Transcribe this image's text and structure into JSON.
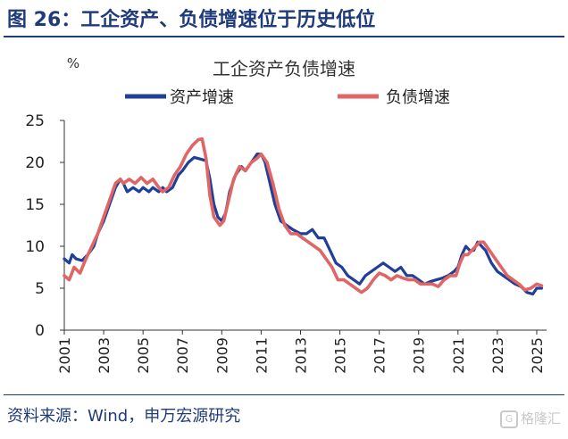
{
  "figure": {
    "title": "图 26：工企资产、负债增速位于历史低位",
    "source": "资料来源：Wind，申万宏源研究",
    "watermark": "格隆汇",
    "watermark_icon": "G"
  },
  "colors": {
    "title": "#1f3b7a",
    "assets": "#1f3f99",
    "liabilities": "#e06666",
    "axis": "#333333"
  },
  "chart_data": {
    "type": "line",
    "title": "工企资产负债增速",
    "unit_label": "%",
    "xlabel": "",
    "ylabel": "",
    "ylim": [
      0,
      25
    ],
    "yticks": [
      0,
      5,
      10,
      15,
      20,
      25
    ],
    "xlim": [
      2001,
      2025.5
    ],
    "xticks": [
      "2001",
      "2003",
      "2005",
      "2007",
      "2009",
      "2011",
      "2013",
      "2015",
      "2017",
      "2019",
      "2021",
      "2023",
      "2025"
    ],
    "grid": false,
    "legend": "top-center",
    "series": [
      {
        "name": "资产增速",
        "color": "#1f3f99",
        "x": [
          2001.0,
          2001.25,
          2001.4,
          2001.6,
          2001.9,
          2002.2,
          2002.5,
          2002.7,
          2003.0,
          2003.3,
          2003.6,
          2003.85,
          2004.0,
          2004.2,
          2004.5,
          2004.8,
          2005.0,
          2005.3,
          2005.5,
          2005.8,
          2006.0,
          2006.2,
          2006.5,
          2006.8,
          2007.0,
          2007.3,
          2007.6,
          2007.9,
          2008.2,
          2008.4,
          2008.6,
          2008.8,
          2009.0,
          2009.2,
          2009.4,
          2009.7,
          2010.0,
          2010.2,
          2010.5,
          2010.8,
          2011.0,
          2011.2,
          2011.4,
          2011.7,
          2012.0,
          2012.3,
          2012.6,
          2013.0,
          2013.3,
          2013.6,
          2013.9,
          2014.2,
          2014.5,
          2014.8,
          2015.1,
          2015.4,
          2015.7,
          2016.0,
          2016.3,
          2016.6,
          2016.9,
          2017.2,
          2017.5,
          2017.8,
          2018.1,
          2018.4,
          2018.7,
          2019.0,
          2019.3,
          2019.6,
          2019.9,
          2020.2,
          2020.5,
          2020.8,
          2021.0,
          2021.2,
          2021.4,
          2021.6,
          2021.8,
          2022.0,
          2022.2,
          2022.4,
          2022.7,
          2023.0,
          2023.3,
          2023.6,
          2023.9,
          2024.2,
          2024.5,
          2024.8,
          2025.0,
          2025.25
        ],
        "values": [
          8.5,
          8.0,
          9.0,
          8.5,
          8.3,
          9.0,
          10.0,
          11.5,
          13.0,
          15.0,
          17.0,
          18.0,
          17.5,
          16.5,
          17.0,
          16.5,
          17.0,
          16.5,
          17.0,
          16.5,
          17.0,
          16.5,
          17.0,
          18.5,
          19.0,
          20.0,
          20.6,
          20.4,
          20.2,
          18.0,
          15.0,
          13.5,
          13.0,
          14.0,
          16.5,
          18.5,
          19.5,
          19.0,
          20.0,
          21.0,
          21.0,
          20.0,
          18.0,
          15.0,
          13.0,
          12.5,
          12.0,
          11.5,
          11.5,
          12.0,
          11.0,
          11.0,
          9.5,
          8.0,
          7.5,
          6.5,
          6.0,
          5.5,
          6.5,
          7.0,
          7.5,
          8.0,
          7.5,
          7.0,
          7.5,
          6.5,
          6.5,
          6.0,
          5.5,
          5.8,
          6.0,
          6.2,
          6.5,
          7.0,
          7.5,
          9.0,
          10.0,
          9.5,
          9.5,
          10.5,
          10.0,
          9.5,
          8.0,
          7.0,
          6.5,
          6.0,
          5.5,
          5.2,
          4.5,
          4.3,
          5.0,
          5.0
        ]
      },
      {
        "name": "负债增速",
        "color": "#e06666",
        "x": [
          2001.0,
          2001.25,
          2001.5,
          2001.8,
          2002.1,
          2002.4,
          2002.7,
          2003.0,
          2003.3,
          2003.6,
          2003.85,
          2004.0,
          2004.3,
          2004.6,
          2004.9,
          2005.2,
          2005.5,
          2005.8,
          2006.0,
          2006.3,
          2006.6,
          2006.9,
          2007.2,
          2007.5,
          2007.8,
          2008.0,
          2008.2,
          2008.4,
          2008.6,
          2008.9,
          2009.1,
          2009.3,
          2009.6,
          2009.9,
          2010.2,
          2010.5,
          2010.8,
          2011.0,
          2011.3,
          2011.6,
          2011.9,
          2012.2,
          2012.5,
          2012.8,
          2013.1,
          2013.4,
          2013.7,
          2014.0,
          2014.3,
          2014.6,
          2014.9,
          2015.2,
          2015.5,
          2015.8,
          2016.1,
          2016.4,
          2016.7,
          2017.0,
          2017.3,
          2017.6,
          2017.9,
          2018.2,
          2018.5,
          2018.8,
          2019.1,
          2019.4,
          2019.7,
          2020.0,
          2020.3,
          2020.6,
          2020.9,
          2021.1,
          2021.3,
          2021.5,
          2021.7,
          2021.9,
          2022.1,
          2022.3,
          2022.6,
          2022.9,
          2023.2,
          2023.5,
          2023.8,
          2024.1,
          2024.4,
          2024.7,
          2025.0,
          2025.25
        ],
        "values": [
          6.5,
          6.0,
          7.5,
          6.8,
          8.5,
          10.0,
          11.5,
          13.5,
          15.5,
          17.5,
          18.0,
          17.5,
          18.0,
          17.5,
          18.2,
          17.5,
          18.0,
          17.0,
          16.5,
          17.0,
          18.5,
          19.5,
          21.0,
          22.0,
          22.7,
          22.8,
          20.5,
          16.0,
          13.5,
          12.5,
          13.0,
          15.0,
          18.0,
          19.5,
          19.0,
          20.0,
          20.5,
          21.0,
          20.0,
          17.5,
          14.5,
          12.5,
          11.5,
          11.5,
          11.0,
          10.5,
          10.0,
          9.5,
          8.5,
          7.5,
          6.0,
          6.0,
          5.5,
          5.0,
          4.5,
          5.0,
          6.0,
          6.8,
          6.5,
          6.0,
          6.5,
          6.2,
          6.0,
          6.0,
          5.5,
          5.5,
          5.5,
          5.2,
          6.0,
          6.5,
          6.5,
          8.0,
          9.0,
          9.0,
          9.5,
          10.0,
          10.5,
          10.5,
          9.5,
          8.5,
          7.5,
          6.5,
          6.0,
          5.5,
          4.8,
          5.0,
          5.5,
          5.3
        ]
      }
    ]
  }
}
